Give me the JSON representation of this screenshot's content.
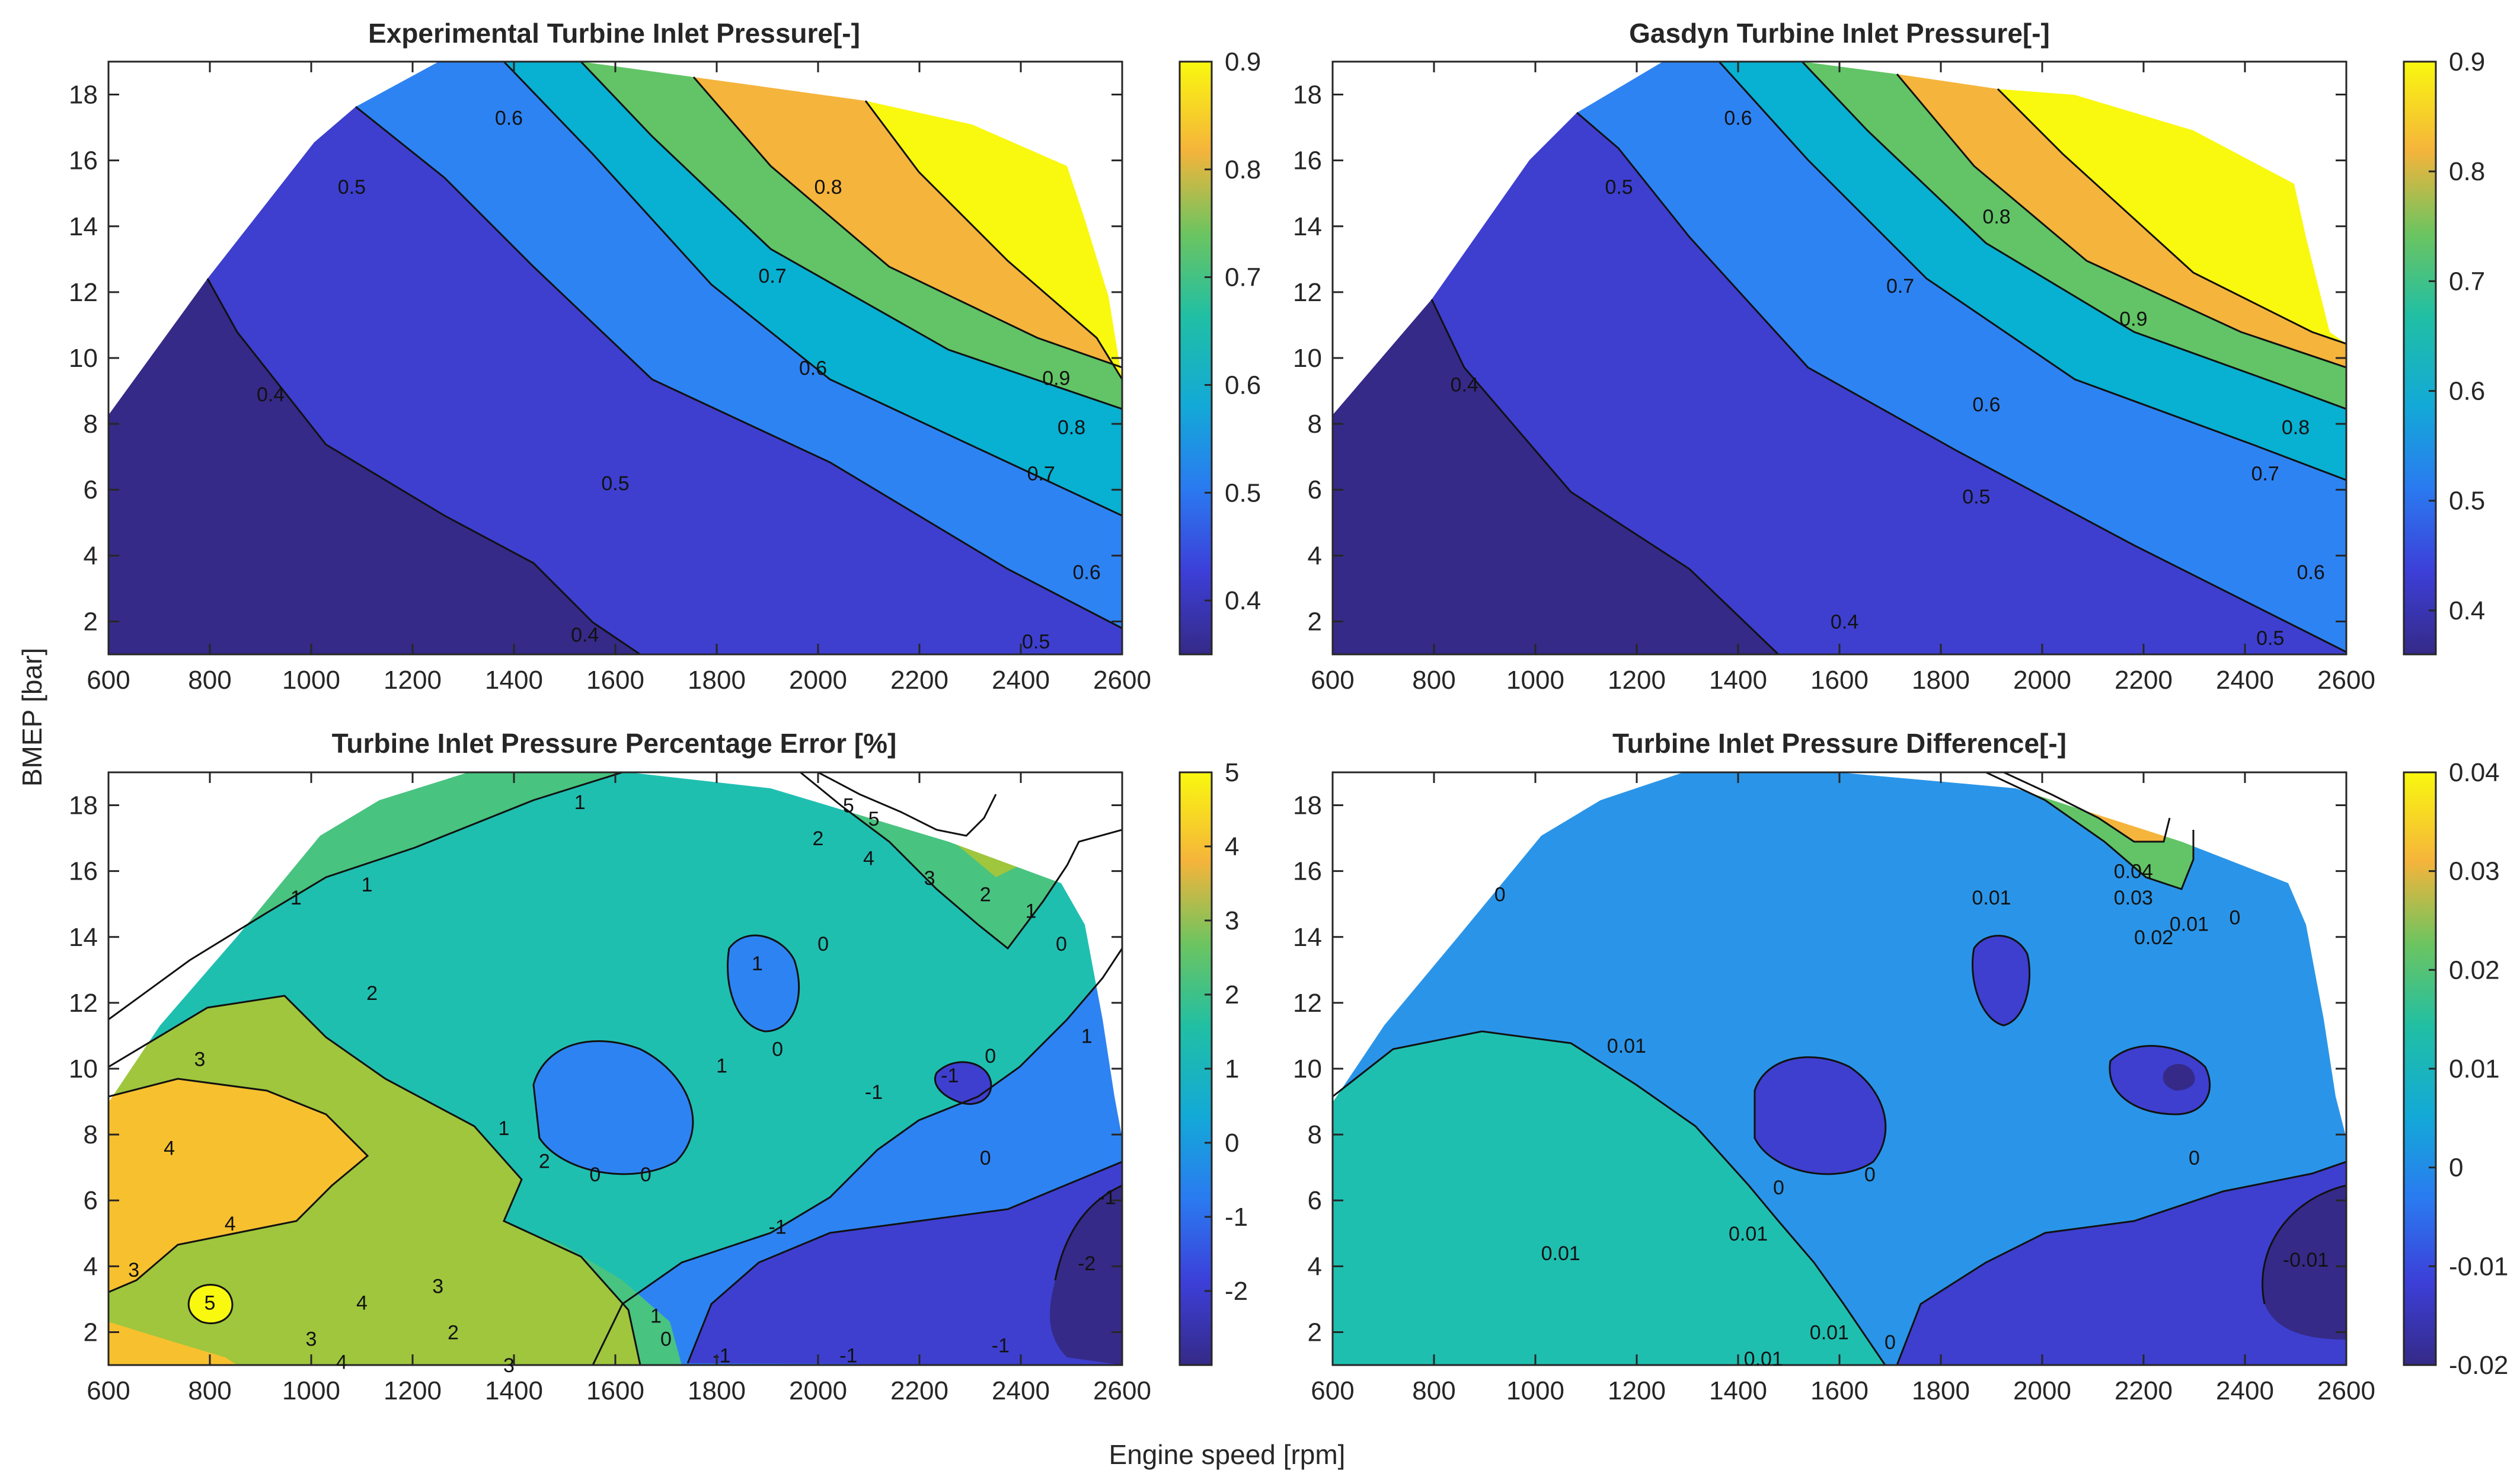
{
  "figure": {
    "xlabel": "Engine speed [rpm]",
    "ylabel": "BMEP [bar]"
  },
  "chart_data": [
    {
      "type": "contour",
      "title": "Experimental Turbine Inlet Pressure[-]",
      "xlabel": "Engine speed [rpm]",
      "ylabel": "BMEP [bar]",
      "xlim": [
        600,
        2600
      ],
      "ylim": [
        1,
        19
      ],
      "xticks": [
        "600",
        "800",
        "1000",
        "1200",
        "1400",
        "1600",
        "1800",
        "2000",
        "2200",
        "2400",
        "2600"
      ],
      "yticks": [
        "2",
        "4",
        "6",
        "8",
        "10",
        "12",
        "14",
        "16",
        "18"
      ],
      "colorbar": {
        "limits": [
          0.35,
          0.9
        ],
        "ticks": [
          "0.4",
          "0.5",
          "0.6",
          "0.7",
          "0.8",
          "0.9"
        ]
      },
      "levels": [
        0.4,
        0.5,
        0.6,
        0.7,
        0.8,
        0.9
      ],
      "contour_labels": [
        {
          "x": 1990,
          "y": 9.7,
          "text": "0.6"
        },
        {
          "x": 2470,
          "y": 9.4,
          "text": "0.9"
        },
        {
          "x": 920,
          "y": 8.9,
          "text": "0.4"
        },
        {
          "x": 1080,
          "y": 15.2,
          "text": "0.5"
        },
        {
          "x": 1390,
          "y": 17.3,
          "text": "0.6"
        },
        {
          "x": 1910,
          "y": 12.5,
          "text": "0.7"
        },
        {
          "x": 2020,
          "y": 15.2,
          "text": "0.8"
        },
        {
          "x": 2500,
          "y": 7.9,
          "text": "0.8"
        },
        {
          "x": 2440,
          "y": 6.5,
          "text": "0.7"
        },
        {
          "x": 2530,
          "y": 3.5,
          "text": "0.6"
        },
        {
          "x": 1600,
          "y": 6.2,
          "text": "0.5"
        },
        {
          "x": 2430,
          "y": 1.4,
          "text": "0.5"
        },
        {
          "x": 1540,
          "y": 1.6,
          "text": "0.4"
        }
      ]
    },
    {
      "type": "contour",
      "title": "Gasdyn Turbine Inlet Pressure[-]",
      "xlabel": "Engine speed [rpm]",
      "ylabel": "BMEP [bar]",
      "xlim": [
        600,
        2600
      ],
      "ylim": [
        1,
        19
      ],
      "xticks": [
        "600",
        "800",
        "1000",
        "1200",
        "1400",
        "1600",
        "1800",
        "2000",
        "2200",
        "2400",
        "2600"
      ],
      "yticks": [
        "2",
        "4",
        "6",
        "8",
        "10",
        "12",
        "14",
        "16",
        "18"
      ],
      "colorbar": {
        "limits": [
          0.36,
          0.9
        ],
        "ticks": [
          "0.4",
          "0.5",
          "0.6",
          "0.7",
          "0.8",
          "0.9"
        ]
      },
      "levels": [
        0.4,
        0.5,
        0.6,
        0.7,
        0.8,
        0.9
      ],
      "contour_labels": [
        {
          "x": 1400,
          "y": 17.3,
          "text": "0.6"
        },
        {
          "x": 1165,
          "y": 15.2,
          "text": "0.5"
        },
        {
          "x": 860,
          "y": 9.2,
          "text": "0.4"
        },
        {
          "x": 1910,
          "y": 14.3,
          "text": "0.8"
        },
        {
          "x": 1720,
          "y": 12.2,
          "text": "0.7"
        },
        {
          "x": 2180,
          "y": 11.2,
          "text": "0.9"
        },
        {
          "x": 1890,
          "y": 8.6,
          "text": "0.6"
        },
        {
          "x": 2500,
          "y": 7.9,
          "text": "0.8"
        },
        {
          "x": 2440,
          "y": 6.5,
          "text": "0.7"
        },
        {
          "x": 2530,
          "y": 3.5,
          "text": "0.6"
        },
        {
          "x": 1870,
          "y": 5.8,
          "text": "0.5"
        },
        {
          "x": 1610,
          "y": 2.0,
          "text": "0.4"
        },
        {
          "x": 2450,
          "y": 1.5,
          "text": "0.5"
        }
      ]
    },
    {
      "type": "contour",
      "title": "Turbine Inlet Pressure Percentage Error [%]",
      "xlabel": "Engine speed [rpm]",
      "ylabel": "BMEP [bar]",
      "xlim": [
        600,
        2600
      ],
      "ylim": [
        1,
        19
      ],
      "xticks": [
        "600",
        "800",
        "1000",
        "1200",
        "1400",
        "1600",
        "1800",
        "2000",
        "2200",
        "2400",
        "2600"
      ],
      "yticks": [
        "2",
        "4",
        "6",
        "8",
        "10",
        "12",
        "14",
        "16",
        "18"
      ],
      "colorbar": {
        "limits": [
          -3,
          5
        ],
        "ticks": [
          "5",
          "4",
          "3",
          "2",
          "1",
          "0",
          "-1",
          "-2"
        ]
      },
      "levels": [
        -2,
        -1,
        0,
        1,
        2,
        3,
        4,
        5
      ],
      "contour_labels": [
        {
          "x": 1120,
          "y": 12.3,
          "text": "2"
        },
        {
          "x": 780,
          "y": 10.3,
          "text": "3"
        },
        {
          "x": 720,
          "y": 7.6,
          "text": "4"
        },
        {
          "x": 840,
          "y": 5.3,
          "text": "4"
        },
        {
          "x": 650,
          "y": 3.9,
          "text": "3"
        },
        {
          "x": 800,
          "y": 2.9,
          "text": "5"
        },
        {
          "x": 1100,
          "y": 2.9,
          "text": "4"
        },
        {
          "x": 1000,
          "y": 1.8,
          "text": "3"
        },
        {
          "x": 1060,
          "y": 1.1,
          "text": "4"
        },
        {
          "x": 1250,
          "y": 3.4,
          "text": "3"
        },
        {
          "x": 1280,
          "y": 2.0,
          "text": "2"
        },
        {
          "x": 1390,
          "y": 1.0,
          "text": "3"
        },
        {
          "x": 1380,
          "y": 8.2,
          "text": "1"
        },
        {
          "x": 1460,
          "y": 7.2,
          "text": "2"
        },
        {
          "x": 1660,
          "y": 6.8,
          "text": "0"
        },
        {
          "x": 1560,
          "y": 6.8,
          "text": "0"
        },
        {
          "x": 1680,
          "y": 2.5,
          "text": "1"
        },
        {
          "x": 1700,
          "y": 1.8,
          "text": "0"
        },
        {
          "x": 1810,
          "y": 1.3,
          "text": "-1"
        },
        {
          "x": 1810,
          "y": 10.1,
          "text": "1"
        },
        {
          "x": 1880,
          "y": 13.2,
          "text": "1"
        },
        {
          "x": 2010,
          "y": 13.8,
          "text": "0"
        },
        {
          "x": 1920,
          "y": 10.6,
          "text": "0"
        },
        {
          "x": 2110,
          "y": 9.3,
          "text": "-1"
        },
        {
          "x": 2260,
          "y": 9.8,
          "text": "-1"
        },
        {
          "x": 2340,
          "y": 10.4,
          "text": "0"
        },
        {
          "x": 2330,
          "y": 7.3,
          "text": "0"
        },
        {
          "x": 2480,
          "y": 13.8,
          "text": "0"
        },
        {
          "x": 2530,
          "y": 11.0,
          "text": "1"
        },
        {
          "x": 2420,
          "y": 14.8,
          "text": "1"
        },
        {
          "x": 2330,
          "y": 15.3,
          "text": "2"
        },
        {
          "x": 2220,
          "y": 15.8,
          "text": "3"
        },
        {
          "x": 2100,
          "y": 16.4,
          "text": "4"
        },
        {
          "x": 2000,
          "y": 17.0,
          "text": "2"
        },
        {
          "x": 2110,
          "y": 17.6,
          "text": "5"
        },
        {
          "x": 2060,
          "y": 18.0,
          "text": "5"
        },
        {
          "x": 1530,
          "y": 18.1,
          "text": "1"
        },
        {
          "x": 1920,
          "y": 5.2,
          "text": "-1"
        },
        {
          "x": 2060,
          "y": 1.3,
          "text": "-1"
        },
        {
          "x": 2360,
          "y": 1.6,
          "text": "-1"
        },
        {
          "x": 2570,
          "y": 6.1,
          "text": "-1"
        },
        {
          "x": 2530,
          "y": 4.1,
          "text": "-2"
        },
        {
          "x": 1110,
          "y": 15.6,
          "text": "1"
        },
        {
          "x": 970,
          "y": 15.2,
          "text": "1"
        }
      ]
    },
    {
      "type": "contour",
      "title": "Turbine Inlet Pressure Difference[-]",
      "xlabel": "Engine speed [rpm]",
      "ylabel": "BMEP [bar]",
      "xlim": [
        600,
        2600
      ],
      "ylim": [
        1,
        19
      ],
      "xticks": [
        "600",
        "800",
        "1000",
        "1200",
        "1400",
        "1600",
        "1800",
        "2000",
        "2200",
        "2400",
        "2600"
      ],
      "yticks": [
        "2",
        "4",
        "6",
        "8",
        "10",
        "12",
        "14",
        "16",
        "18"
      ],
      "colorbar": {
        "limits": [
          -0.02,
          0.04
        ],
        "ticks": [
          "0.04",
          "0.03",
          "0.02",
          "0.01",
          "0",
          "-0.01",
          "-0.02"
        ]
      },
      "levels": [
        -0.01,
        0,
        0.01,
        0.02,
        0.03,
        0.04
      ],
      "contour_labels": [
        {
          "x": 1180,
          "y": 10.7,
          "text": "0.01"
        },
        {
          "x": 1660,
          "y": 6.8,
          "text": "0"
        },
        {
          "x": 1480,
          "y": 6.4,
          "text": "0"
        },
        {
          "x": 1420,
          "y": 5.0,
          "text": "0.01"
        },
        {
          "x": 1050,
          "y": 4.4,
          "text": "0.01"
        },
        {
          "x": 1900,
          "y": 15.2,
          "text": "0.01"
        },
        {
          "x": 2180,
          "y": 16.0,
          "text": "0.04"
        },
        {
          "x": 2180,
          "y": 15.2,
          "text": "0.03"
        },
        {
          "x": 2220,
          "y": 14.0,
          "text": "0.02"
        },
        {
          "x": 2290,
          "y": 14.4,
          "text": "0.01"
        },
        {
          "x": 2380,
          "y": 14.6,
          "text": "0"
        },
        {
          "x": 930,
          "y": 15.3,
          "text": "0"
        },
        {
          "x": 2300,
          "y": 7.3,
          "text": "0"
        },
        {
          "x": 1580,
          "y": 2.0,
          "text": "0.01"
        },
        {
          "x": 1700,
          "y": 1.7,
          "text": "0"
        },
        {
          "x": 1450,
          "y": 1.2,
          "text": "0.01"
        },
        {
          "x": 2520,
          "y": 4.2,
          "text": "-0.01"
        }
      ]
    }
  ]
}
